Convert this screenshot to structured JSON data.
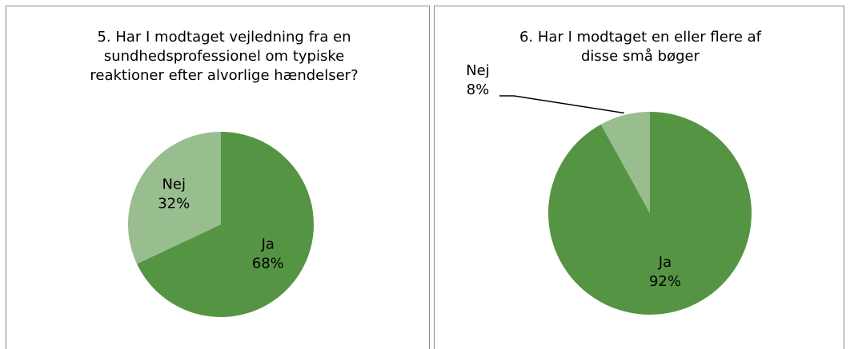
{
  "chart_data": [
    {
      "type": "pie",
      "title": [
        "5. Har I modtaget vejledning fra en",
        "sundhedsprofessionel om typiske",
        "reaktioner efter alvorlige hændelser?"
      ],
      "categories": [
        "Ja",
        "Nej"
      ],
      "values": [
        68,
        32
      ],
      "value_labels": [
        "68%",
        "32%"
      ],
      "colors": [
        "#559443",
        "#98bd8f"
      ]
    },
    {
      "type": "pie",
      "title": [
        "6. Har I modtaget en eller flere af",
        "disse små bøger"
      ],
      "categories": [
        "Ja",
        "Nej"
      ],
      "values": [
        92,
        8
      ],
      "value_labels": [
        "92%",
        "8%"
      ],
      "colors": [
        "#559443",
        "#98bd8f"
      ]
    }
  ]
}
